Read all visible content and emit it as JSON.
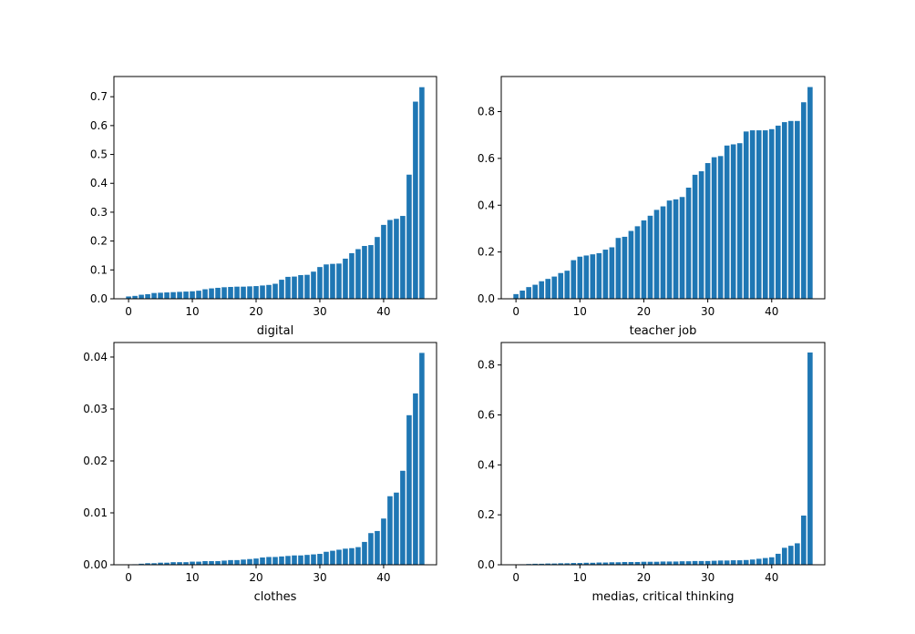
{
  "colors": {
    "bar": "#1f77b4",
    "background": "#ffffff",
    "axes": "#000000"
  },
  "chart_data": [
    {
      "type": "bar",
      "xlabel": "digital",
      "xlim": [
        -2.3,
        48.3
      ],
      "ylim": [
        0,
        0.77
      ],
      "xticks": [
        0,
        10,
        20,
        30,
        40
      ],
      "yticks": [
        0.0,
        0.1,
        0.2,
        0.3,
        0.4,
        0.5,
        0.6,
        0.7
      ],
      "ytick_labels": [
        "0.0",
        "0.1",
        "0.2",
        "0.3",
        "0.4",
        "0.5",
        "0.6",
        "0.7"
      ],
      "x": [
        0,
        1,
        2,
        3,
        4,
        5,
        6,
        7,
        8,
        9,
        10,
        11,
        12,
        13,
        14,
        15,
        16,
        17,
        18,
        19,
        20,
        21,
        22,
        23,
        24,
        25,
        26,
        27,
        28,
        29,
        30,
        31,
        32,
        33,
        34,
        35,
        36,
        37,
        38,
        39,
        40,
        41,
        42,
        43,
        44,
        45,
        46
      ],
      "values": [
        0.008,
        0.01,
        0.014,
        0.016,
        0.02,
        0.021,
        0.022,
        0.023,
        0.024,
        0.025,
        0.026,
        0.028,
        0.033,
        0.036,
        0.038,
        0.04,
        0.041,
        0.042,
        0.042,
        0.043,
        0.044,
        0.046,
        0.048,
        0.052,
        0.066,
        0.076,
        0.077,
        0.082,
        0.083,
        0.094,
        0.11,
        0.119,
        0.121,
        0.122,
        0.139,
        0.158,
        0.172,
        0.183,
        0.186,
        0.214,
        0.256,
        0.273,
        0.277,
        0.287,
        0.43,
        0.683,
        0.733
      ]
    },
    {
      "type": "bar",
      "xlabel": "teacher job",
      "xlim": [
        -2.3,
        48.3
      ],
      "ylim": [
        0,
        0.95
      ],
      "xticks": [
        0,
        10,
        20,
        30,
        40
      ],
      "yticks": [
        0.0,
        0.2,
        0.4,
        0.6,
        0.8
      ],
      "ytick_labels": [
        "0.0",
        "0.2",
        "0.4",
        "0.6",
        "0.8"
      ],
      "x": [
        0,
        1,
        2,
        3,
        4,
        5,
        6,
        7,
        8,
        9,
        10,
        11,
        12,
        13,
        14,
        15,
        16,
        17,
        18,
        19,
        20,
        21,
        22,
        23,
        24,
        25,
        26,
        27,
        28,
        29,
        30,
        31,
        32,
        33,
        34,
        35,
        36,
        37,
        38,
        39,
        40,
        41,
        42,
        43,
        44,
        45,
        46
      ],
      "values": [
        0.02,
        0.035,
        0.05,
        0.06,
        0.075,
        0.085,
        0.095,
        0.11,
        0.12,
        0.165,
        0.18,
        0.185,
        0.19,
        0.195,
        0.21,
        0.22,
        0.26,
        0.265,
        0.29,
        0.31,
        0.335,
        0.355,
        0.38,
        0.395,
        0.42,
        0.425,
        0.435,
        0.475,
        0.53,
        0.545,
        0.58,
        0.605,
        0.61,
        0.655,
        0.66,
        0.665,
        0.715,
        0.72,
        0.72,
        0.72,
        0.725,
        0.74,
        0.755,
        0.76,
        0.76,
        0.84,
        0.905
      ]
    },
    {
      "type": "bar",
      "xlabel": "clothes",
      "xlim": [
        -2.3,
        48.3
      ],
      "ylim": [
        0,
        0.0428
      ],
      "xticks": [
        0,
        10,
        20,
        30,
        40
      ],
      "yticks": [
        0.0,
        0.01,
        0.02,
        0.03,
        0.04
      ],
      "ytick_labels": [
        "0.00",
        "0.01",
        "0.02",
        "0.03",
        "0.04"
      ],
      "x": [
        0,
        1,
        2,
        3,
        4,
        5,
        6,
        7,
        8,
        9,
        10,
        11,
        12,
        13,
        14,
        15,
        16,
        17,
        18,
        19,
        20,
        21,
        22,
        23,
        24,
        25,
        26,
        27,
        28,
        29,
        30,
        31,
        32,
        33,
        34,
        35,
        36,
        37,
        38,
        39,
        40,
        41,
        42,
        43,
        44,
        45,
        46
      ],
      "values": [
        5e-05,
        0.0001,
        0.0002,
        0.0003,
        0.0003,
        0.0004,
        0.0004,
        0.0005,
        0.0005,
        0.0005,
        0.0006,
        0.0006,
        0.0007,
        0.0007,
        0.0007,
        0.0008,
        0.0009,
        0.0009,
        0.001,
        0.0011,
        0.0012,
        0.0014,
        0.0015,
        0.0015,
        0.0016,
        0.0017,
        0.0018,
        0.0018,
        0.0019,
        0.002,
        0.0021,
        0.0025,
        0.0027,
        0.0029,
        0.0031,
        0.0032,
        0.0034,
        0.0044,
        0.0061,
        0.0065,
        0.0089,
        0.0132,
        0.0139,
        0.0181,
        0.0288,
        0.033,
        0.0408
      ]
    },
    {
      "type": "bar",
      "xlabel": "medias, critical thinking",
      "xlim": [
        -2.3,
        48.3
      ],
      "ylim": [
        0,
        0.89
      ],
      "xticks": [
        0,
        10,
        20,
        30,
        40
      ],
      "yticks": [
        0.0,
        0.2,
        0.4,
        0.6,
        0.8
      ],
      "ytick_labels": [
        "0.0",
        "0.2",
        "0.4",
        "0.6",
        "0.8"
      ],
      "x": [
        0,
        1,
        2,
        3,
        4,
        5,
        6,
        7,
        8,
        9,
        10,
        11,
        12,
        13,
        14,
        15,
        16,
        17,
        18,
        19,
        20,
        21,
        22,
        23,
        24,
        25,
        26,
        27,
        28,
        29,
        30,
        31,
        32,
        33,
        34,
        35,
        36,
        37,
        38,
        39,
        40,
        41,
        42,
        43,
        44,
        45,
        46
      ],
      "values": [
        0.001,
        0.002,
        0.003,
        0.004,
        0.004,
        0.005,
        0.005,
        0.006,
        0.006,
        0.007,
        0.007,
        0.008,
        0.008,
        0.009,
        0.009,
        0.01,
        0.01,
        0.011,
        0.011,
        0.011,
        0.012,
        0.012,
        0.012,
        0.013,
        0.013,
        0.013,
        0.014,
        0.014,
        0.015,
        0.015,
        0.015,
        0.016,
        0.017,
        0.017,
        0.018,
        0.018,
        0.019,
        0.021,
        0.024,
        0.027,
        0.03,
        0.044,
        0.068,
        0.076,
        0.086,
        0.197,
        0.85
      ]
    }
  ]
}
